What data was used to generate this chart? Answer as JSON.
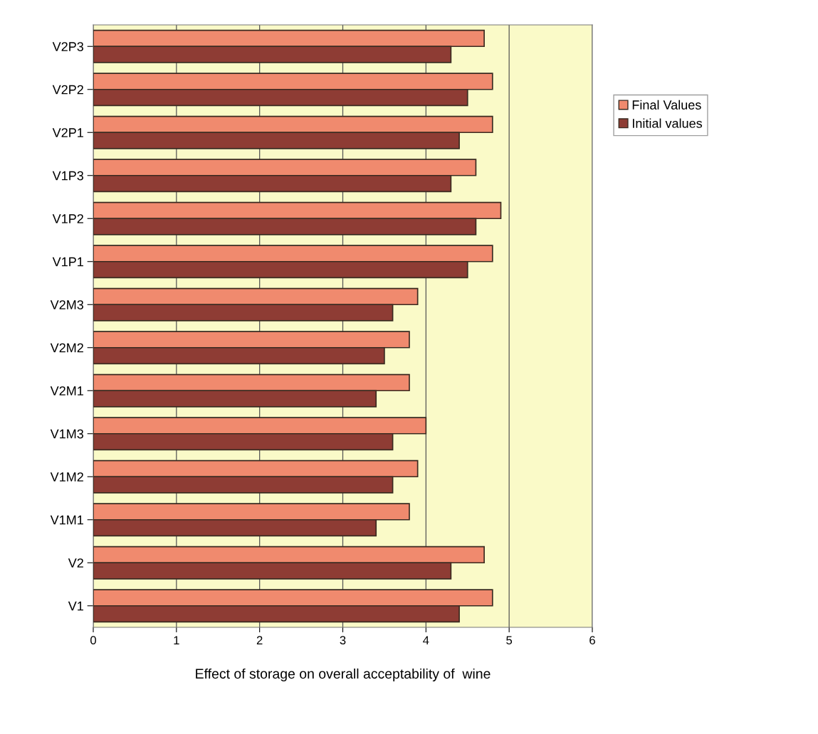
{
  "chart_data": {
    "type": "bar",
    "orientation": "horizontal",
    "xlabel": "Effect of storage on overall acceptability of  wine",
    "categories": [
      "V2P3",
      "V2P2",
      "V2P1",
      "V1P3",
      "V1P2",
      "V1P1",
      "V2M3",
      "V2M2",
      "V2M1",
      "V1M3",
      "V1M2",
      "V1M1",
      "V2",
      "V1"
    ],
    "series": [
      {
        "name": "Final Values",
        "color": "#f08a6e",
        "values": [
          4.7,
          4.8,
          4.8,
          4.6,
          4.9,
          4.8,
          3.9,
          3.8,
          3.8,
          4.0,
          3.9,
          3.8,
          4.7,
          4.8
        ]
      },
      {
        "name": "Initial values",
        "color": "#8e3c34",
        "values": [
          4.3,
          4.5,
          4.4,
          4.3,
          4.6,
          4.5,
          3.6,
          3.5,
          3.4,
          3.6,
          3.6,
          3.4,
          4.3,
          4.4
        ]
      }
    ],
    "xlim": [
      0,
      6
    ],
    "xticks": [
      0,
      1,
      2,
      3,
      4,
      5,
      6
    ],
    "grid": "x",
    "legend": "right"
  }
}
